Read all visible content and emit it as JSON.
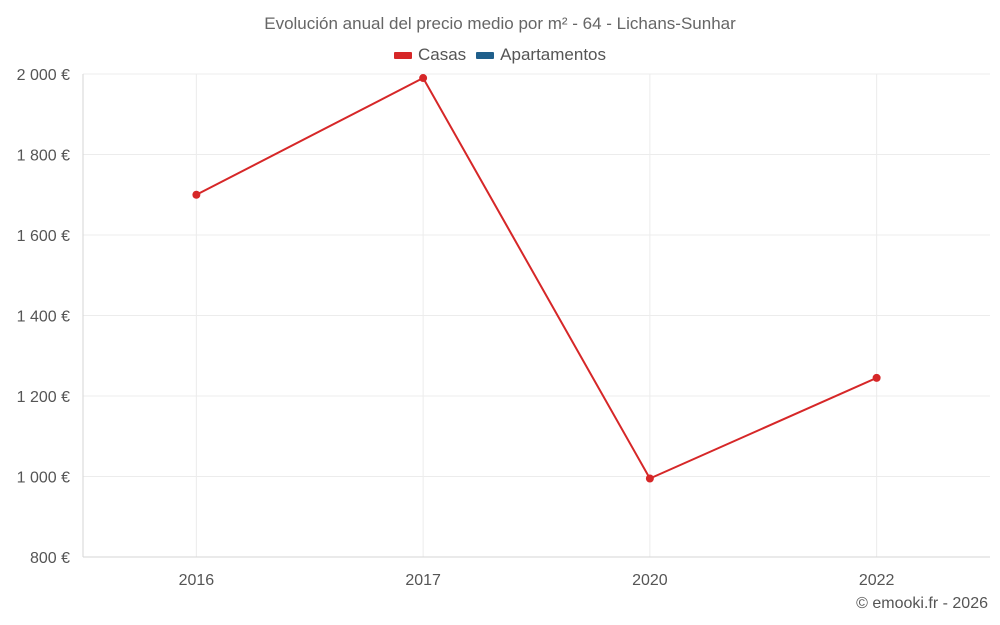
{
  "chart_data": {
    "type": "line",
    "title": "Evolución anual del precio medio por m² - 64 - Lichans-Sunhar",
    "categories": [
      "2016",
      "2017",
      "2020",
      "2022"
    ],
    "series": [
      {
        "name": "Casas",
        "color": "#d62728",
        "values": [
          1700,
          1990,
          995,
          1245
        ]
      },
      {
        "name": "Apartamentos",
        "color": "#1f5f8b",
        "values": [
          null,
          null,
          null,
          null
        ]
      }
    ],
    "ylim": [
      800,
      2000
    ],
    "yticks": [
      800,
      1000,
      1200,
      1400,
      1600,
      1800,
      2000
    ],
    "ytick_labels": [
      "800 €",
      "1 000 €",
      "1 200 €",
      "1 400 €",
      "1 600 €",
      "1 800 €",
      "2 000 €"
    ],
    "xlabel": "",
    "ylabel": "",
    "grid": true,
    "legend": "top-center"
  },
  "credit": "© emooki.fr - 2026"
}
